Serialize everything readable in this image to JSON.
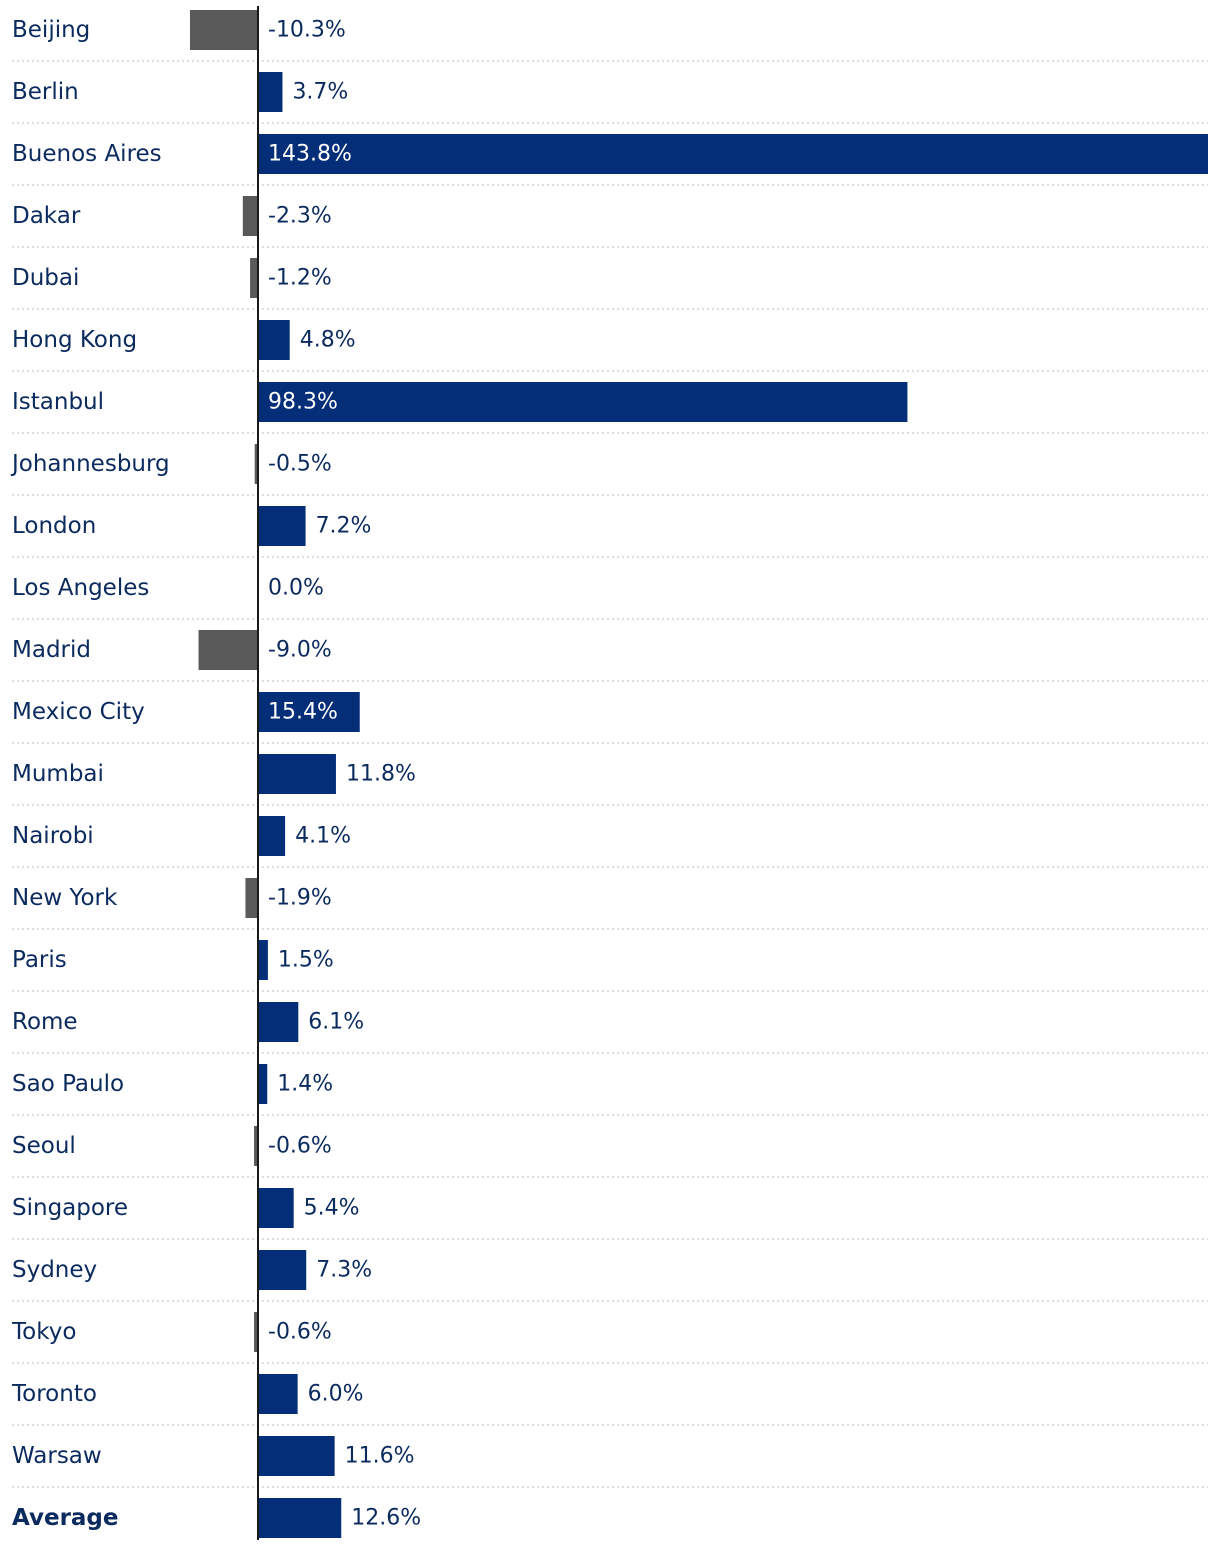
{
  "chart_data": {
    "type": "bar",
    "orientation": "horizontal",
    "categories": [
      "Beijing",
      "Berlin",
      "Buenos Aires",
      "Dakar",
      "Dubai",
      "Hong Kong",
      "Istanbul",
      "Johannesburg",
      "London",
      "Los Angeles",
      "Madrid",
      "Mexico City",
      "Mumbai",
      "Nairobi",
      "New York",
      "Paris",
      "Rome",
      "Sao Paulo",
      "Seoul",
      "Singapore",
      "Sydney",
      "Tokyo",
      "Toronto",
      "Warsaw",
      "Average"
    ],
    "values": [
      -10.3,
      3.7,
      143.8,
      -2.3,
      -1.2,
      4.8,
      98.3,
      -0.5,
      7.2,
      0.0,
      -9.0,
      15.4,
      11.8,
      4.1,
      -1.9,
      1.5,
      6.1,
      1.4,
      -0.6,
      5.4,
      7.3,
      -0.6,
      6.0,
      11.6,
      12.6
    ],
    "value_labels": [
      "-10.3%",
      "3.7%",
      "143.8%",
      "-2.3%",
      "-1.2%",
      "4.8%",
      "98.3%",
      "-0.5%",
      "7.2%",
      "0.0%",
      "-9.0%",
      "15.4%",
      "11.8%",
      "4.1%",
      "-1.9%",
      "1.5%",
      "6.1%",
      "1.4%",
      "-0.6%",
      "5.4%",
      "7.3%",
      "-0.6%",
      "6.0%",
      "11.6%",
      "12.6%"
    ],
    "bold_categories": [
      "Average"
    ],
    "xlim": [
      -37.2,
      143.8
    ],
    "title": "",
    "xlabel": "",
    "ylabel": "",
    "grid": "horizontal-dotted",
    "legend": "none",
    "colors": {
      "positive": "#052e78",
      "negative": "#5a5a5a",
      "label_text": "#0b2a5e",
      "label_on_bar": "#ffffff"
    }
  }
}
